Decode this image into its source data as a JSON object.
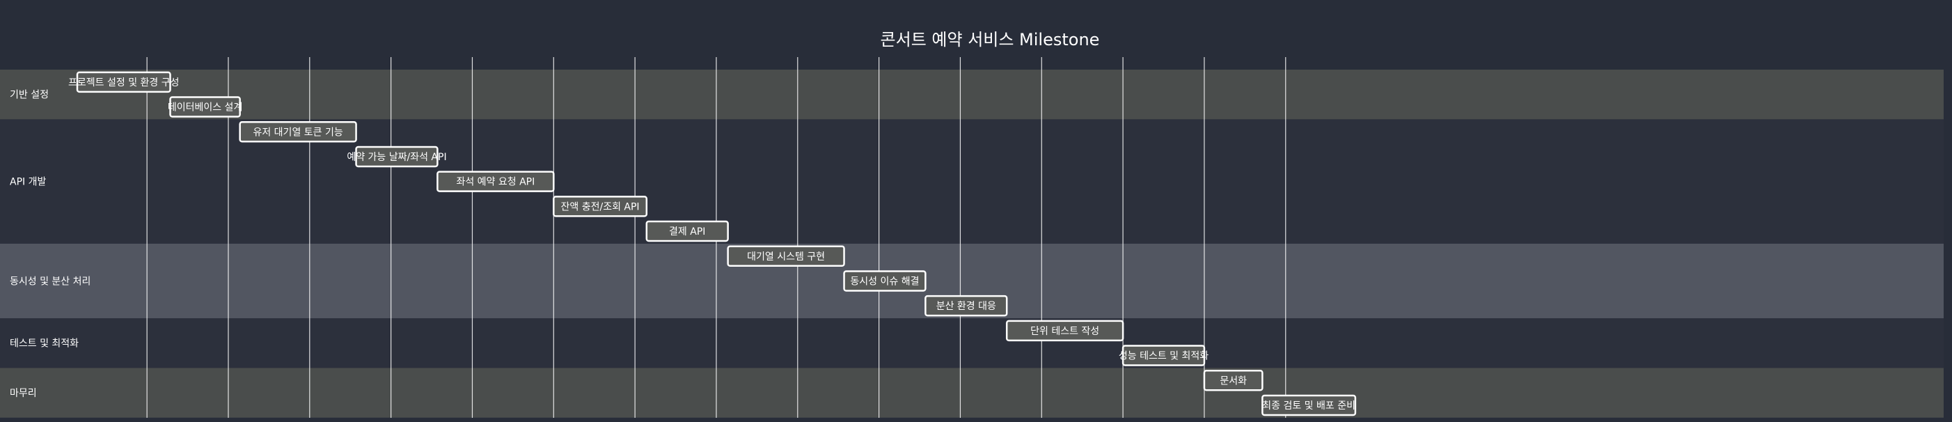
{
  "chart_data": {
    "type": "gantt",
    "title": "콘서트 예약 서비스 Milestone",
    "sections": [
      {
        "name": "기반 설정",
        "color": "#4a4d4c"
      },
      {
        "name": "API 개발",
        "color": "#2c303c"
      },
      {
        "name": "동시성 및 분산 처리",
        "color": "#525661"
      },
      {
        "name": "테스트 및 최적화",
        "color": "#2c303c"
      },
      {
        "name": "마무리",
        "color": "#4a4d4c"
      }
    ],
    "tasks": [
      {
        "name": "프로젝트 설정 및 환경 구성",
        "section": 0,
        "start": 0,
        "end": 8
      },
      {
        "name": "데이터베이스 설계",
        "section": 0,
        "start": 8,
        "end": 14
      },
      {
        "name": "유저 대기열 토큰 기능",
        "section": 1,
        "start": 14,
        "end": 24
      },
      {
        "name": "예약 가능 날짜/좌석 API",
        "section": 1,
        "start": 24,
        "end": 31
      },
      {
        "name": "좌석 예약 요청 API",
        "section": 1,
        "start": 31,
        "end": 41
      },
      {
        "name": "잔액 충전/조회 API",
        "section": 1,
        "start": 41,
        "end": 49
      },
      {
        "name": "결제 API",
        "section": 1,
        "start": 49,
        "end": 56
      },
      {
        "name": "대기열 시스템 구현",
        "section": 2,
        "start": 56,
        "end": 66
      },
      {
        "name": "동시성 이슈 해결",
        "section": 2,
        "start": 66,
        "end": 73
      },
      {
        "name": "분산 환경 대응",
        "section": 2,
        "start": 73,
        "end": 80
      },
      {
        "name": "단위 테스트 작성",
        "section": 3,
        "start": 80,
        "end": 90
      },
      {
        "name": "성능 테스트 및 최적화",
        "section": 3,
        "start": 90,
        "end": 97
      },
      {
        "name": "문서화",
        "section": 4,
        "start": 97,
        "end": 102
      },
      {
        "name": "최종 검토 및 배포 준비",
        "section": 4,
        "start": 102,
        "end": 110
      }
    ],
    "x_range": [
      0,
      110
    ],
    "grid_x": [
      6,
      13,
      20,
      27,
      34,
      41,
      48,
      55,
      62,
      69,
      76,
      83,
      90,
      97,
      104
    ],
    "grid": true,
    "bar_fill": "#575957",
    "bar_stroke": "#ffffff",
    "grid_color": "#ffffff",
    "text_color": "#ffffff"
  }
}
